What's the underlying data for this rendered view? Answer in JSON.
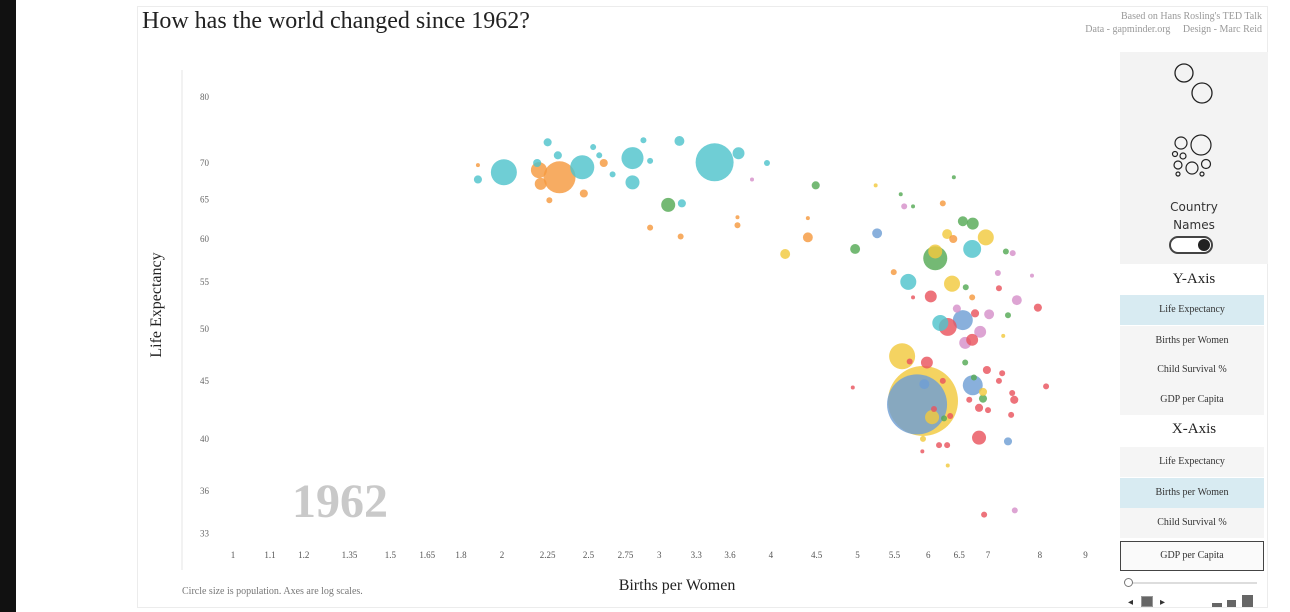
{
  "header": {
    "title": "How has the world changed since 1962?",
    "credit_line1": "Based on Hans Rosling's TED Talk",
    "credit_line2": "Data - gapminder.org     Design - Marc Reid"
  },
  "panel": {
    "country_names_label": "Country Names",
    "country_names_on": true,
    "y_axis": {
      "title": "Y-Axis",
      "options": [
        "Life Expectancy",
        "Births per Women",
        "Child Survival %",
        "GDP per Capita"
      ],
      "selected": "Life Expectancy"
    },
    "x_axis": {
      "title": "X-Axis",
      "options": [
        "Life Expectancy",
        "Births per Women",
        "Child Survival %",
        "GDP per Capita"
      ],
      "selected": "Births per Women",
      "hovered": "GDP per Capita"
    },
    "icons": [
      "bubbles-two-icon",
      "bubbles-cluster-icon",
      "play-back-icon",
      "pause-icon",
      "play-forward-icon",
      "size-small-icon",
      "size-medium-icon",
      "size-large-icon"
    ]
  },
  "footnote": "Circle size is population.  Axes are log scales.",
  "chart_data": {
    "type": "scatter",
    "year": "1962",
    "xlabel": "Births per Women",
    "ylabel": "Life Expectancy",
    "x_scale": "log",
    "y_scale": "log",
    "xlim": [
      0.9,
      9.5
    ],
    "ylim": [
      32,
      82
    ],
    "x_ticks": [
      "1",
      "1.1",
      "1.2",
      "1.35",
      "1.5",
      "1.65",
      "1.8",
      "2",
      "2.25",
      "2.5",
      "2.75",
      "3",
      "3.3",
      "3.6",
      "4",
      "4.5",
      "5",
      "5.5",
      "6",
      "6.5",
      "7",
      "8",
      "9"
    ],
    "y_ticks": [
      "80",
      "70",
      "65",
      "60",
      "55",
      "50",
      "45",
      "40",
      "36",
      "33"
    ],
    "size": "population (millions, approx.)",
    "colors": {
      "cyan": "#4fc3cc",
      "orange": "#f59a3f",
      "green": "#55a955",
      "yellow": "#f1c93e",
      "blue": "#6f9fd4",
      "pink": "#d590c9",
      "red": "#e9545e"
    },
    "points": [
      [
        2.01,
        68.7,
        124,
        "cyan"
      ],
      [
        2.46,
        69.4,
        106,
        "cyan"
      ],
      [
        2.8,
        70.7,
        89,
        "cyan"
      ],
      [
        2.8,
        67.3,
        36,
        "cyan"
      ],
      [
        3.46,
        70.1,
        265,
        "cyan"
      ],
      [
        3.68,
        71.4,
        26,
        "cyan"
      ],
      [
        3.16,
        73.2,
        18,
        "cyan"
      ],
      [
        2.88,
        73.3,
        6.6,
        "cyan"
      ],
      [
        2.25,
        73.0,
        12,
        "cyan"
      ],
      [
        2.31,
        71.1,
        12,
        "cyan"
      ],
      [
        2.53,
        72.3,
        6.6,
        "cyan"
      ],
      [
        2.57,
        71.1,
        6.6,
        "cyan"
      ],
      [
        2.66,
        68.4,
        6.6,
        "cyan"
      ],
      [
        2.93,
        70.3,
        6.6,
        "cyan"
      ],
      [
        3.96,
        70.0,
        6.6,
        "cyan"
      ],
      [
        1.88,
        67.7,
        12,
        "cyan"
      ],
      [
        3.18,
        64.5,
        12,
        "cyan"
      ],
      [
        2.19,
        70.0,
        12,
        "cyan"
      ],
      [
        6.72,
        58.8,
        59,
        "cyan"
      ],
      [
        5.7,
        55.0,
        47,
        "cyan"
      ],
      [
        6.19,
        50.6,
        47,
        "cyan"
      ],
      [
        2.32,
        68.0,
        188,
        "orange"
      ],
      [
        2.2,
        69.0,
        47,
        "orange"
      ],
      [
        2.21,
        67.1,
        26,
        "orange"
      ],
      [
        2.47,
        65.8,
        12,
        "orange"
      ],
      [
        2.26,
        64.9,
        6.6,
        "orange"
      ],
      [
        2.6,
        70.0,
        12,
        "orange"
      ],
      [
        1.88,
        69.7,
        2.9,
        "orange"
      ],
      [
        2.93,
        61.4,
        6.6,
        "orange"
      ],
      [
        3.17,
        60.3,
        6.6,
        "orange"
      ],
      [
        3.67,
        61.7,
        6.6,
        "orange"
      ],
      [
        3.67,
        62.7,
        2.9,
        "orange"
      ],
      [
        4.4,
        60.2,
        18,
        "orange"
      ],
      [
        4.4,
        62.6,
        2.9,
        "orange"
      ],
      [
        6.23,
        64.5,
        6.6,
        "orange"
      ],
      [
        6.4,
        60.0,
        12,
        "orange"
      ],
      [
        5.49,
        56.1,
        6.6,
        "orange"
      ],
      [
        6.72,
        53.3,
        6.6,
        "orange"
      ],
      [
        3.07,
        64.3,
        36,
        "green"
      ],
      [
        4.49,
        66.9,
        12,
        "green"
      ],
      [
        5.59,
        65.7,
        2.9,
        "green"
      ],
      [
        5.77,
        64.1,
        2.9,
        "green"
      ],
      [
        6.41,
        68.0,
        2.9,
        "green"
      ],
      [
        4.97,
        58.8,
        18,
        "green"
      ],
      [
        6.11,
        57.7,
        106,
        "green"
      ],
      [
        6.56,
        62.2,
        18,
        "green"
      ],
      [
        6.73,
        61.9,
        26,
        "green"
      ],
      [
        7.33,
        58.5,
        6.6,
        "green"
      ],
      [
        6.61,
        54.4,
        6.6,
        "green"
      ],
      [
        7.37,
        51.4,
        6.6,
        "green"
      ],
      [
        6.6,
        46.7,
        6.6,
        "green"
      ],
      [
        6.75,
        45.3,
        6.6,
        "green"
      ],
      [
        6.91,
        43.4,
        12,
        "green"
      ],
      [
        6.25,
        41.7,
        6.6,
        "green"
      ],
      [
        5.24,
        66.9,
        2.9,
        "yellow"
      ],
      [
        4.15,
        58.2,
        18,
        "yellow"
      ],
      [
        6.11,
        58.5,
        36,
        "yellow"
      ],
      [
        6.3,
        60.6,
        18,
        "yellow"
      ],
      [
        6.96,
        60.2,
        47,
        "yellow"
      ],
      [
        6.38,
        54.8,
        47,
        "yellow"
      ],
      [
        7.28,
        49.3,
        2.9,
        "yellow"
      ],
      [
        5.61,
        47.3,
        124,
        "yellow"
      ],
      [
        5.92,
        43.2,
        898,
        "yellow"
      ],
      [
        5.26,
        60.7,
        18,
        "blue"
      ],
      [
        6.56,
        50.9,
        73,
        "blue"
      ],
      [
        5.83,
        42.9,
        660,
        "blue"
      ],
      [
        5.94,
        44.7,
        18,
        "blue"
      ],
      [
        6.73,
        44.6,
        73,
        "blue"
      ],
      [
        7.37,
        39.8,
        12,
        "blue"
      ],
      [
        6.06,
        41.8,
        36,
        "yellow"
      ],
      [
        6.91,
        44.0,
        12,
        "yellow"
      ],
      [
        5.92,
        40.0,
        6.6,
        "yellow"
      ],
      [
        6.31,
        37.9,
        2.9,
        "yellow"
      ],
      [
        3.81,
        67.7,
        2.9,
        "pink"
      ],
      [
        5.64,
        64.1,
        6.6,
        "pink"
      ],
      [
        7.46,
        58.3,
        6.6,
        "pink"
      ],
      [
        7.18,
        56.0,
        6.6,
        "pink"
      ],
      [
        7.84,
        55.7,
        2.9,
        "pink"
      ],
      [
        7.54,
        53.0,
        18,
        "pink"
      ],
      [
        6.46,
        52.1,
        12,
        "pink"
      ],
      [
        7.02,
        51.5,
        18,
        "pink"
      ],
      [
        6.86,
        49.7,
        26,
        "pink"
      ],
      [
        6.6,
        48.6,
        26,
        "pink"
      ],
      [
        7.5,
        34.6,
        6.6,
        "pink"
      ],
      [
        7.2,
        54.3,
        6.6,
        "red"
      ],
      [
        5.77,
        53.3,
        2.9,
        "red"
      ],
      [
        6.04,
        53.4,
        26,
        "red"
      ],
      [
        7.96,
        52.2,
        12,
        "red"
      ],
      [
        6.77,
        51.6,
        12,
        "red"
      ],
      [
        6.31,
        50.2,
        59,
        "red"
      ],
      [
        6.72,
        48.9,
        26,
        "red"
      ],
      [
        5.98,
        46.7,
        26,
        "red"
      ],
      [
        5.72,
        46.8,
        6.6,
        "red"
      ],
      [
        6.23,
        45.0,
        6.6,
        "red"
      ],
      [
        6.35,
        41.9,
        6.6,
        "red"
      ],
      [
        6.09,
        42.5,
        6.6,
        "red"
      ],
      [
        4.94,
        44.4,
        2.9,
        "red"
      ],
      [
        6.98,
        46.0,
        12,
        "red"
      ],
      [
        7.26,
        45.7,
        6.6,
        "red"
      ],
      [
        7.2,
        45.0,
        6.6,
        "red"
      ],
      [
        7.45,
        43.9,
        6.6,
        "red"
      ],
      [
        7.49,
        43.3,
        12,
        "red"
      ],
      [
        6.67,
        43.3,
        6.6,
        "red"
      ],
      [
        6.84,
        42.6,
        12,
        "red"
      ],
      [
        7.0,
        42.4,
        6.6,
        "red"
      ],
      [
        7.43,
        42.0,
        6.6,
        "red"
      ],
      [
        8.13,
        44.5,
        6.6,
        "red"
      ],
      [
        6.84,
        40.1,
        36,
        "red"
      ],
      [
        6.17,
        39.5,
        6.6,
        "red"
      ],
      [
        6.3,
        39.5,
        6.6,
        "red"
      ],
      [
        5.91,
        39.0,
        2.9,
        "red"
      ],
      [
        6.93,
        34.3,
        6.6,
        "red"
      ]
    ]
  }
}
